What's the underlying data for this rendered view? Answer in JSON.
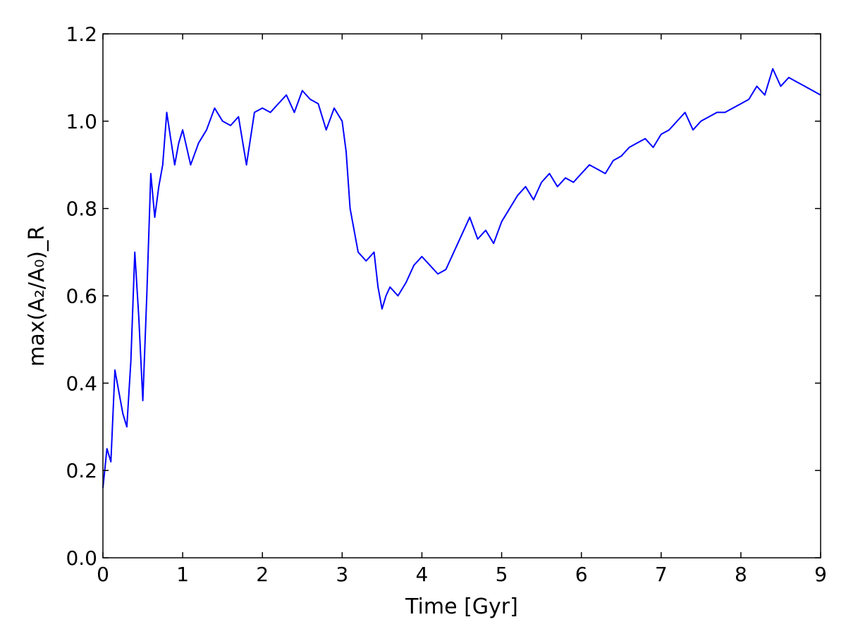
{
  "chart_data": {
    "type": "line",
    "xlabel": "Time [Gyr]",
    "ylabel": "max(A₂/A₀)_R",
    "xlim": [
      0,
      9
    ],
    "ylim": [
      0,
      1.2
    ],
    "xticks": [
      "0",
      "1",
      "2",
      "3",
      "4",
      "5",
      "6",
      "7",
      "8",
      "9"
    ],
    "yticks": [
      "0.0",
      "0.2",
      "0.4",
      "0.6",
      "0.8",
      "1.0",
      "1.2"
    ],
    "grid": false,
    "line_color": "#0000ff",
    "series": [
      {
        "x": [
          0.0,
          0.05,
          0.1,
          0.15,
          0.2,
          0.25,
          0.3,
          0.35,
          0.4,
          0.45,
          0.5,
          0.55,
          0.6,
          0.65,
          0.7,
          0.75,
          0.8,
          0.85,
          0.9,
          0.95,
          1.0,
          1.1,
          1.2,
          1.3,
          1.4,
          1.5,
          1.6,
          1.7,
          1.8,
          1.9,
          2.0,
          2.1,
          2.2,
          2.3,
          2.4,
          2.5,
          2.6,
          2.7,
          2.8,
          2.9,
          3.0,
          3.05,
          3.1,
          3.2,
          3.3,
          3.4,
          3.45,
          3.5,
          3.55,
          3.6,
          3.7,
          3.8,
          3.9,
          4.0,
          4.1,
          4.2,
          4.3,
          4.4,
          4.5,
          4.6,
          4.7,
          4.8,
          4.9,
          5.0,
          5.1,
          5.2,
          5.3,
          5.4,
          5.5,
          5.6,
          5.7,
          5.8,
          5.9,
          6.0,
          6.1,
          6.2,
          6.3,
          6.4,
          6.5,
          6.6,
          6.7,
          6.8,
          6.9,
          7.0,
          7.1,
          7.2,
          7.3,
          7.4,
          7.5,
          7.6,
          7.7,
          7.8,
          7.9,
          8.0,
          8.1,
          8.2,
          8.3,
          8.4,
          8.5,
          8.6,
          8.7,
          8.8,
          8.9,
          9.0
        ],
        "values": [
          0.16,
          0.25,
          0.22,
          0.43,
          0.38,
          0.33,
          0.3,
          0.45,
          0.7,
          0.55,
          0.36,
          0.6,
          0.88,
          0.78,
          0.85,
          0.9,
          1.02,
          0.96,
          0.9,
          0.95,
          0.98,
          0.9,
          0.95,
          0.98,
          1.03,
          1.0,
          0.99,
          1.01,
          0.9,
          1.02,
          1.03,
          1.02,
          1.04,
          1.06,
          1.02,
          1.07,
          1.05,
          1.04,
          0.98,
          1.03,
          1.0,
          0.93,
          0.8,
          0.7,
          0.68,
          0.7,
          0.62,
          0.57,
          0.6,
          0.62,
          0.6,
          0.63,
          0.67,
          0.69,
          0.67,
          0.65,
          0.66,
          0.7,
          0.74,
          0.78,
          0.73,
          0.75,
          0.72,
          0.77,
          0.8,
          0.83,
          0.85,
          0.82,
          0.86,
          0.88,
          0.85,
          0.87,
          0.86,
          0.88,
          0.9,
          0.89,
          0.88,
          0.91,
          0.92,
          0.94,
          0.95,
          0.96,
          0.94,
          0.97,
          0.98,
          1.0,
          1.02,
          0.98,
          1.0,
          1.01,
          1.02,
          1.02,
          1.03,
          1.04,
          1.05,
          1.08,
          1.06,
          1.12,
          1.08,
          1.1,
          1.09,
          1.08,
          1.07,
          1.06
        ]
      }
    ]
  }
}
